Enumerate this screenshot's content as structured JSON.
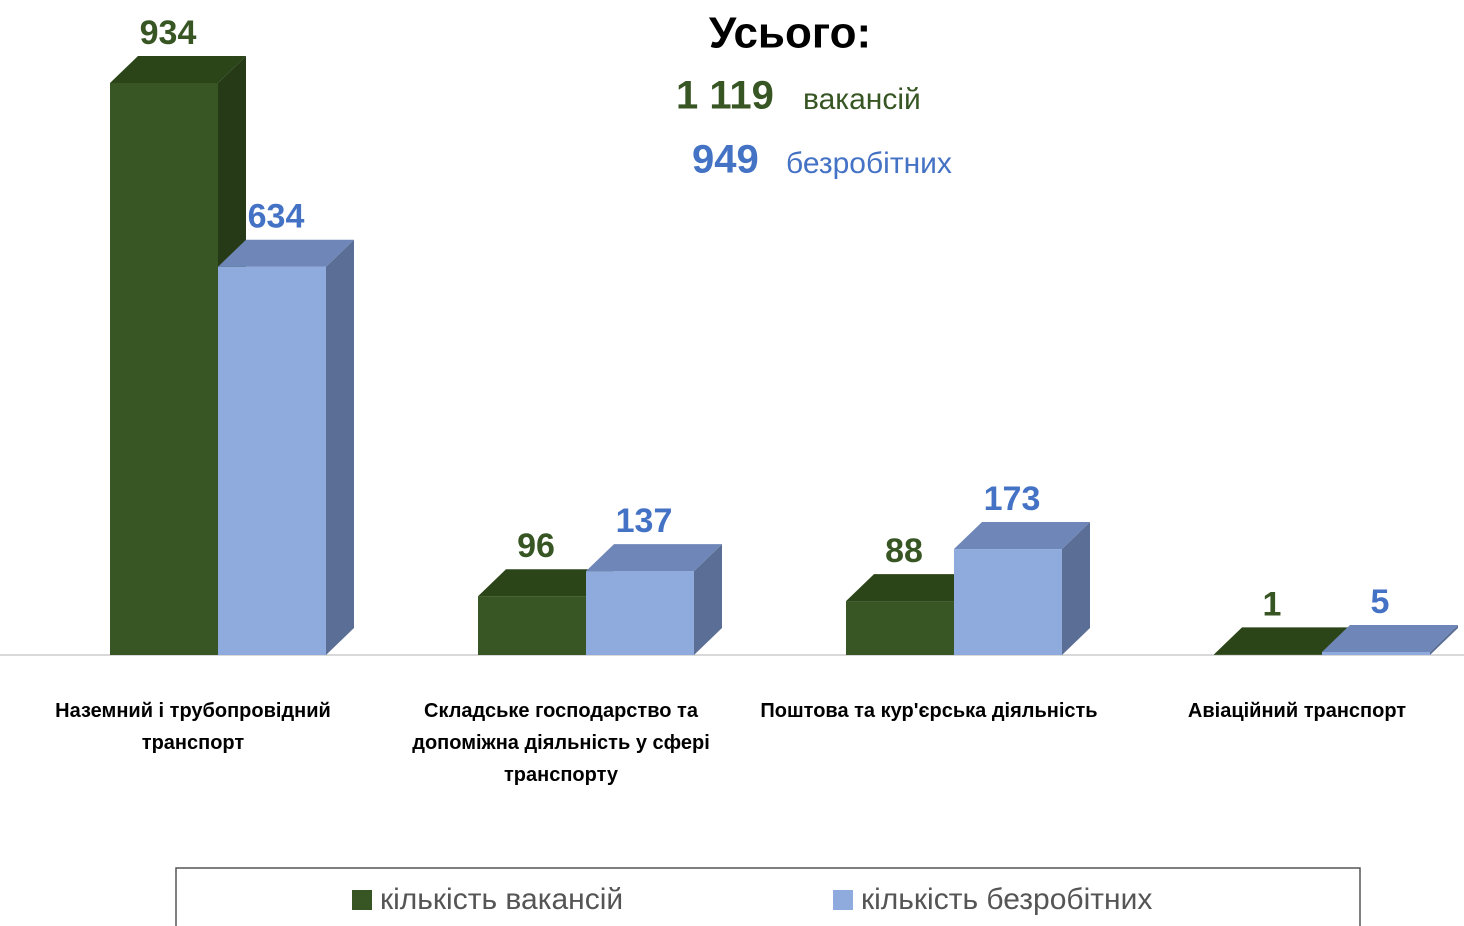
{
  "chart_data": {
    "type": "bar3d",
    "title": "Усього:",
    "totals": [
      {
        "number": "1 119",
        "text": "вакансій"
      },
      {
        "number": "949",
        "text": "безробітних"
      }
    ],
    "categories": [
      "Наземний і трубопровідний транспорт",
      "Складське господарство та допоміжна діяльність у сфері транспорту",
      "Поштова та кур'єрська діяльність",
      "Авіаційний транспорт"
    ],
    "series": [
      {
        "name": "кількість вакансій",
        "color": "#375623",
        "values": [
          934,
          96,
          88,
          1
        ]
      },
      {
        "name": "кількість безробітних",
        "color": "#8faadc",
        "values": [
          634,
          137,
          173,
          5
        ]
      }
    ]
  }
}
